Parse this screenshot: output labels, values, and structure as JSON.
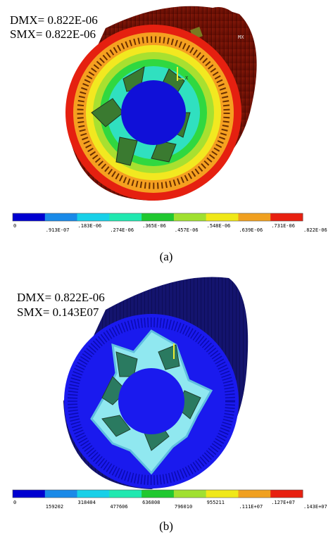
{
  "panels": [
    {
      "dmx": "DMX= 0.822E-06",
      "smx": "SMX= 0.822E-06",
      "mx_label": "MX",
      "axis_label": "X",
      "legend_labels": [
        "0",
        ".913E-07",
        ".183E-06",
        ".274E-06",
        ".365E-06",
        ".457E-06",
        ".548E-06",
        ".639E-06",
        ".731E-06",
        ".822E-06"
      ],
      "caption": "(a)"
    },
    {
      "dmx": "DMX= 0.822E-06",
      "smx": "SMX= 0.143E07",
      "legend_labels": [
        "0",
        "159202",
        "318404",
        "477606",
        "636808",
        "796010",
        "955211",
        ".111E+07",
        ".127E+07",
        ".143E+07"
      ],
      "caption": "(b)"
    }
  ]
}
